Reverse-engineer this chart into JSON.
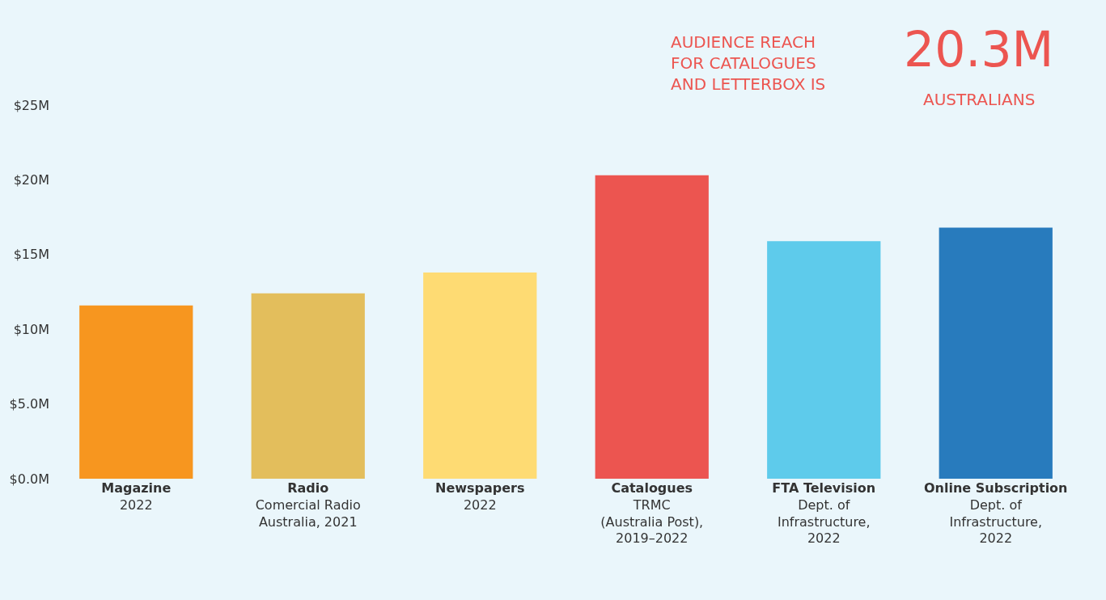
{
  "chart_data": {
    "type": "bar",
    "categories": [
      "Magazine\n2022",
      "Radio\nComercial Radio\nAustralia, 2021",
      "Newspapers\n2022",
      "Catalogues\nTRMC\n(Australia Post),\n2019–2022",
      "FTA Television\nDept. of\nInfrastructure,\n2022",
      "Online Subscription\nDept. of\nInfrastructure,\n2022"
    ],
    "values": [
      11.6,
      12.4,
      13.8,
      20.3,
      15.9,
      16.8
    ],
    "colors": [
      "#f7961f",
      "#e3be5c",
      "#fedb73",
      "#ec5550",
      "#5ecbeb",
      "#287bbd"
    ],
    "ylim": [
      0,
      25
    ],
    "yticks": [
      {
        "value": 0,
        "label": "$0.0M"
      },
      {
        "value": 5,
        "label": "$5.0M"
      },
      {
        "value": 10,
        "label": "$10M"
      },
      {
        "value": 15,
        "label": "$15M"
      },
      {
        "value": 20,
        "label": "$20M"
      },
      {
        "value": 25,
        "label": "$25M"
      }
    ],
    "grid": false,
    "legend": false,
    "annotations": [
      "AUDIENCE REACH\nFOR CATALOGUES\nAND LETTERBOX IS",
      "20.3M",
      "AUSTRALIANS"
    ]
  }
}
